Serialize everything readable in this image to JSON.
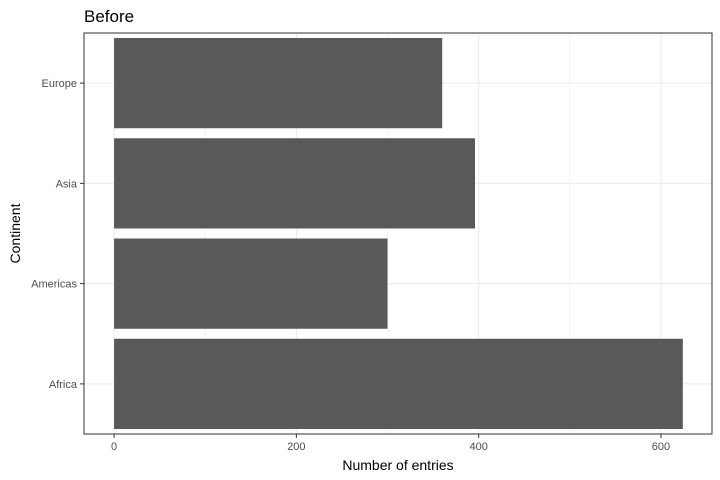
{
  "chart_data": {
    "type": "bar",
    "orientation": "horizontal",
    "title": "Before",
    "xlabel": "Number of entries",
    "ylabel": "Continent",
    "categories": [
      "Africa",
      "Americas",
      "Asia",
      "Europe"
    ],
    "values": [
      624,
      300,
      396,
      360
    ],
    "xlim": [
      -33,
      656
    ],
    "xticks": [
      0,
      200,
      400,
      600
    ],
    "xticklabels": [
      "0",
      "200",
      "400",
      "600"
    ],
    "grid": true,
    "bar_color": "#595959",
    "grid_color": "#ebebeb",
    "panel_border_color": "#333333"
  }
}
